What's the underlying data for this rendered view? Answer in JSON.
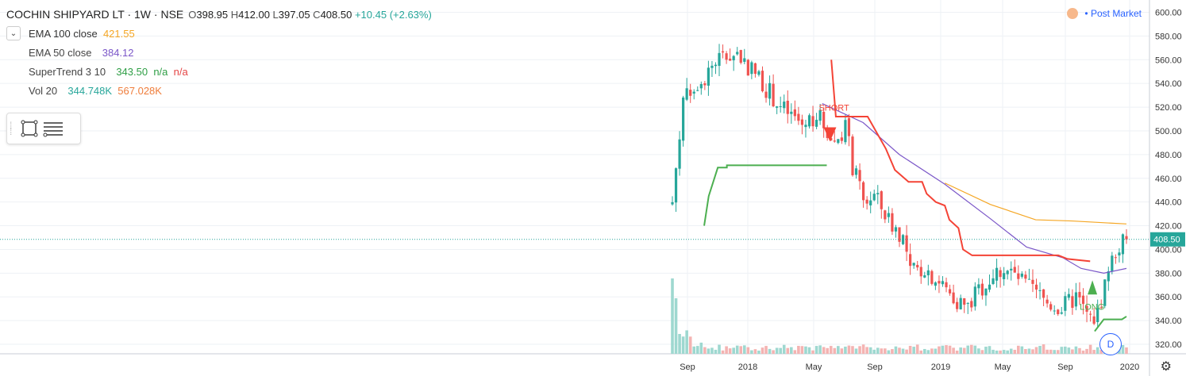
{
  "header": {
    "symbol_title": "COCHIN SHIPYARD LT · 1W · NSE",
    "ohlc": {
      "o_label": "O",
      "o": "398.95",
      "h_label": "H",
      "h": "412.00",
      "l_label": "L",
      "l": "397.05",
      "c_label": "C",
      "c": "408.50",
      "change": "+10.45 (+2.63%)"
    }
  },
  "legend": {
    "collapse_icon": "chevron-down-icon",
    "ema100": {
      "name": "EMA 100 close",
      "value": "421.55",
      "color": "#f5a623"
    },
    "ema50": {
      "name": "EMA 50 close",
      "value": "384.12",
      "color": "#7b57c8"
    },
    "supertrend": {
      "name": "SuperTrend 3 10",
      "value": "343.50",
      "na1": "n/a",
      "na2": "n/a"
    },
    "volume": {
      "name": "Vol 20",
      "v1": "344.748K",
      "v2": "567.028K"
    }
  },
  "toolbar": {
    "tools": [
      "rectangle-tool-icon",
      "horizontal-lines-tool-icon"
    ]
  },
  "status": {
    "post_market": "Post Market"
  },
  "badge": {
    "label": "D"
  },
  "colors": {
    "up": "#26a69a",
    "down": "#ef5350",
    "st_up": "#4caf50",
    "st_down": "#f44336",
    "vol_up": "#9ed8d0",
    "vol_down": "#f4b3b2"
  },
  "chart_data": {
    "type": "candlestick",
    "interval": "weekly",
    "price_axis": {
      "ticks": [
        "600.00",
        "580.00",
        "560.00",
        "540.00",
        "520.00",
        "500.00",
        "480.00",
        "460.00",
        "440.00",
        "420.00",
        "400.00",
        "380.00",
        "360.00",
        "340.00",
        "320.00"
      ],
      "range": [
        312,
        605
      ]
    },
    "time_axis": {
      "ticks": [
        "Sep",
        "2018",
        "May",
        "Sep",
        "2019",
        "May",
        "Sep",
        "2020"
      ]
    },
    "last_price": "408.50",
    "annotations": [
      {
        "label": "SHORT",
        "type": "sell-signal",
        "x_label": "Jun 2018",
        "price": 500
      },
      {
        "label": "LONG",
        "type": "buy-signal",
        "x_label": "Oct 2019",
        "price": 365
      }
    ],
    "series": [
      {
        "name": "EMA 100 close",
        "type": "line",
        "anchors": [
          [
            0.6,
            456
          ],
          [
            0.7,
            438
          ],
          [
            0.8,
            425
          ],
          [
            0.88,
            424
          ],
          [
            1.0,
            421.5
          ]
        ]
      },
      {
        "name": "EMA 50 close",
        "type": "line",
        "anchors": [
          [
            0.33,
            523
          ],
          [
            0.42,
            507
          ],
          [
            0.5,
            480
          ],
          [
            0.6,
            455
          ],
          [
            0.7,
            426
          ],
          [
            0.78,
            402
          ],
          [
            0.86,
            393
          ],
          [
            0.9,
            384
          ],
          [
            0.95,
            380
          ],
          [
            1.0,
            384
          ]
        ]
      },
      {
        "name": "SuperTrend 3 10",
        "type": "stepline"
      }
    ],
    "candles_generated": true
  }
}
